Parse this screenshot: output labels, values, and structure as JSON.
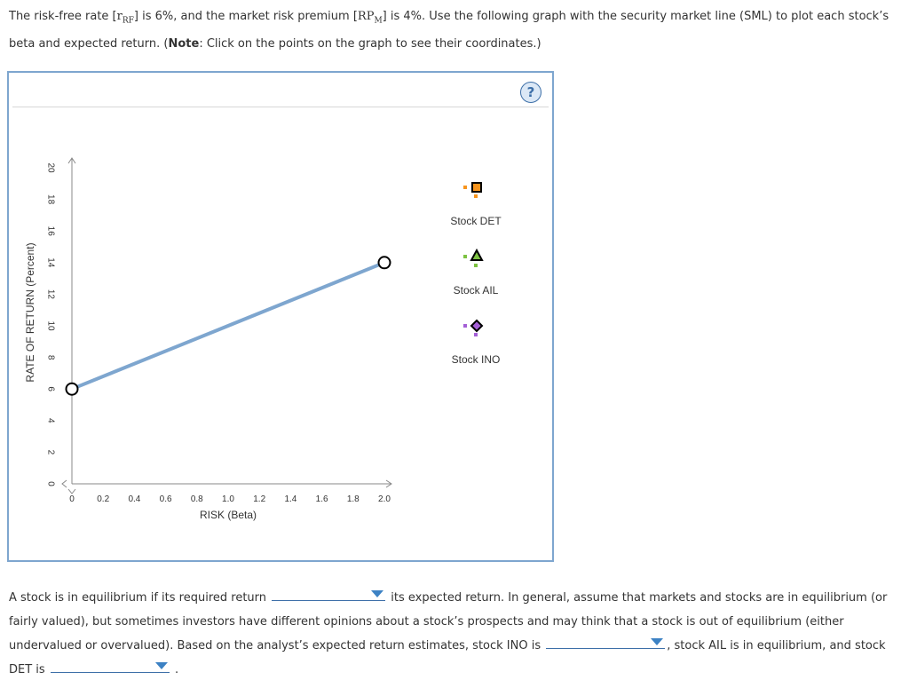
{
  "question": {
    "p1": "The risk-free rate [",
    "rf_main": "r",
    "rf_sub": "RF",
    "p2": "] is 6%, and the market risk premium [",
    "rpm_main": "RP",
    "rpm_sub": "M",
    "p3": "] is 4%. Use the following graph with the security market line (SML) to plot each stock’s beta and expected return. (",
    "note_label": "Note",
    "p4": ": Click on the points on the graph to see their coordinates.)"
  },
  "help_button_label": "?",
  "chart_data": {
    "type": "line",
    "title": "",
    "xlabel": "RISK (Beta)",
    "ylabel": "RATE OF RETURN (Percent)",
    "xlim": [
      0,
      2.0
    ],
    "ylim": [
      0,
      20
    ],
    "x_ticks": [
      "0",
      "0.2",
      "0.4",
      "0.6",
      "0.8",
      "1.0",
      "1.2",
      "1.4",
      "1.6",
      "1.8",
      "2.0"
    ],
    "y_ticks": [
      "0",
      "2",
      "4",
      "6",
      "8",
      "10",
      "12",
      "14",
      "16",
      "18",
      "20"
    ],
    "series": [
      {
        "name": "SML",
        "color": "#7ea6cf",
        "points": [
          [
            0,
            6
          ],
          [
            2.0,
            14
          ]
        ]
      }
    ],
    "legend": [
      {
        "name": "Stock DET",
        "marker": "square",
        "color": "#f7941d"
      },
      {
        "name": "Stock AIL",
        "marker": "triangle",
        "color": "#7dc242"
      },
      {
        "name": "Stock INO",
        "marker": "diamond",
        "color": "#a45fd6"
      }
    ]
  },
  "answer": {
    "s1": "A stock is in equilibrium if its required return",
    "s2": "its expected return. In general, assume that markets and stocks are in equilibrium (or fairly valued), but sometimes investors have different opinions about a stock’s prospects and may think that a stock is out of equilibrium (either undervalued or overvalued). Based on the analyst’s expected return estimates, stock INO is",
    "s3": ", stock AIL is in equilibrium, and stock DET is",
    "s4": ".",
    "dropdown1_value": "",
    "dropdown2_value": "",
    "dropdown3_value": ""
  }
}
